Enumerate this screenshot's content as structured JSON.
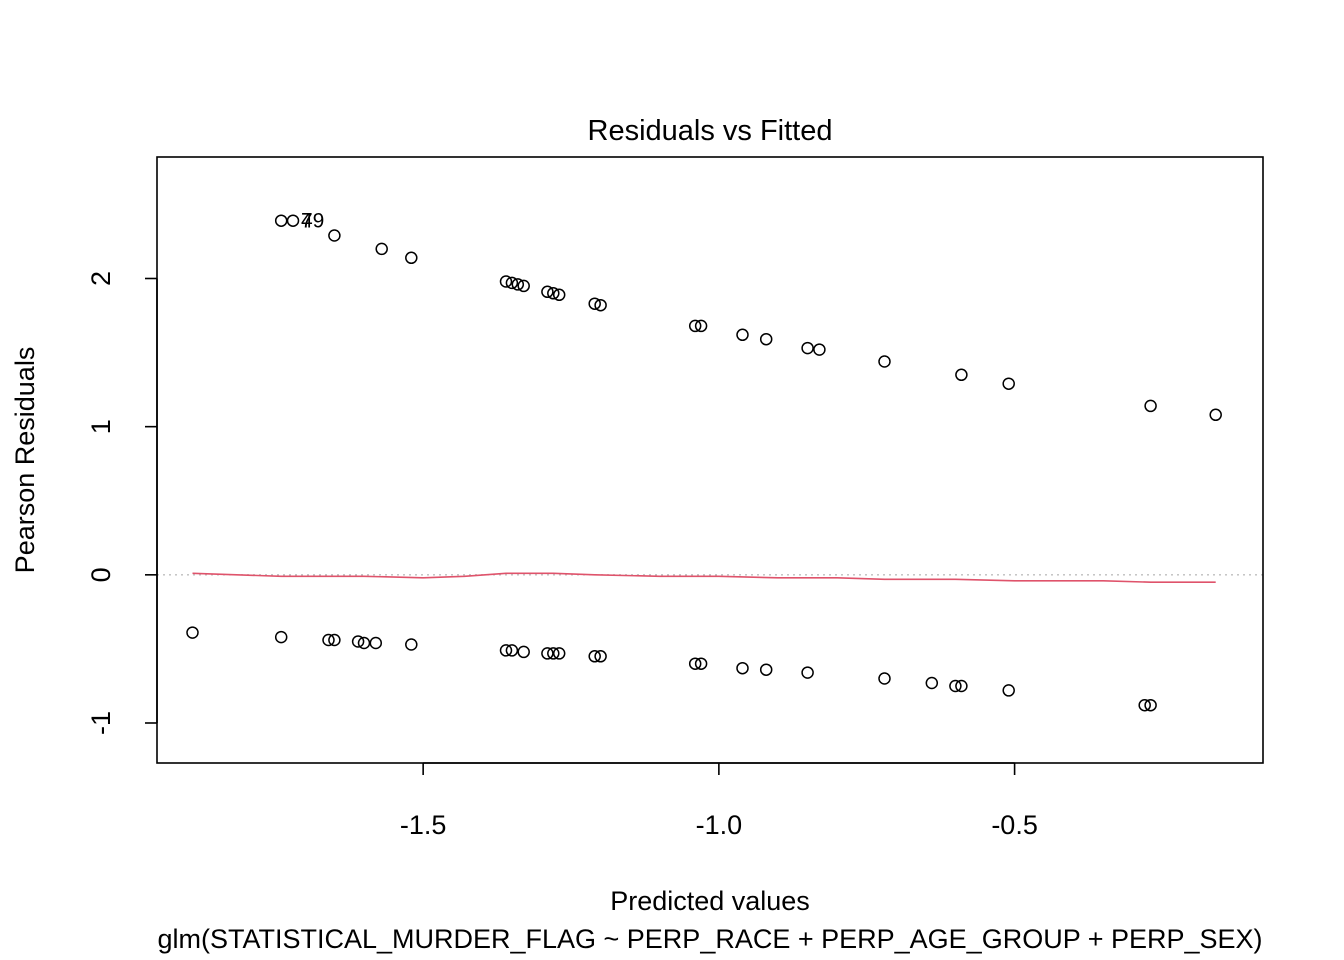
{
  "chart_data": {
    "type": "scatter",
    "title": "Residuals vs Fitted",
    "xlabel": "Predicted values",
    "ylabel": "Pearson Residuals",
    "subtitle": "glm(STATISTICAL_MURDER_FLAG ~ PERP_RACE + PERP_AGE_GROUP + PERP_SEX)",
    "xlim": [
      -1.95,
      -0.08
    ],
    "ylim": [
      -1.27,
      2.82
    ],
    "x_ticks": [
      -1.5,
      -1.0,
      -0.5
    ],
    "x_tick_labels": [
      "-1.5",
      "-1.0",
      "-0.5"
    ],
    "y_ticks": [
      -1,
      0,
      1,
      2
    ],
    "y_tick_labels": [
      "-1",
      "0",
      "1",
      "2"
    ],
    "reference_line": {
      "y": 0,
      "style": "dotted",
      "color": "#BEBEBE"
    },
    "point_labels": [
      {
        "text": "49",
        "x": -1.72,
        "y": 2.39
      },
      {
        "text": "7",
        "x": -1.72,
        "y": 2.39
      }
    ],
    "series": [
      {
        "points": [
          [
            -1.74,
            2.39
          ],
          [
            -1.72,
            2.39
          ],
          [
            -1.65,
            2.29
          ],
          [
            -1.57,
            2.2
          ],
          [
            -1.52,
            2.14
          ],
          [
            -1.36,
            1.98
          ],
          [
            -1.35,
            1.97
          ],
          [
            -1.34,
            1.96
          ],
          [
            -1.33,
            1.95
          ],
          [
            -1.29,
            1.91
          ],
          [
            -1.28,
            1.9
          ],
          [
            -1.27,
            1.89
          ],
          [
            -1.21,
            1.83
          ],
          [
            -1.2,
            1.82
          ],
          [
            -1.04,
            1.68
          ],
          [
            -1.03,
            1.68
          ],
          [
            -0.96,
            1.62
          ],
          [
            -0.92,
            1.59
          ],
          [
            -0.85,
            1.53
          ],
          [
            -0.83,
            1.52
          ],
          [
            -0.72,
            1.44
          ],
          [
            -0.59,
            1.35
          ],
          [
            -0.51,
            1.29
          ],
          [
            -0.27,
            1.14
          ],
          [
            -0.16,
            1.08
          ],
          [
            -1.89,
            -0.39
          ],
          [
            -1.74,
            -0.42
          ],
          [
            -1.66,
            -0.44
          ],
          [
            -1.65,
            -0.44
          ],
          [
            -1.61,
            -0.45
          ],
          [
            -1.6,
            -0.46
          ],
          [
            -1.58,
            -0.46
          ],
          [
            -1.52,
            -0.47
          ],
          [
            -1.36,
            -0.51
          ],
          [
            -1.35,
            -0.51
          ],
          [
            -1.33,
            -0.52
          ],
          [
            -1.29,
            -0.53
          ],
          [
            -1.28,
            -0.53
          ],
          [
            -1.27,
            -0.53
          ],
          [
            -1.21,
            -0.55
          ],
          [
            -1.2,
            -0.55
          ],
          [
            -1.04,
            -0.6
          ],
          [
            -1.03,
            -0.6
          ],
          [
            -0.96,
            -0.63
          ],
          [
            -0.92,
            -0.64
          ],
          [
            -0.85,
            -0.66
          ],
          [
            -0.72,
            -0.7
          ],
          [
            -0.64,
            -0.73
          ],
          [
            -0.6,
            -0.75
          ],
          [
            -0.59,
            -0.75
          ],
          [
            -0.51,
            -0.78
          ],
          [
            -0.28,
            -0.88
          ],
          [
            -0.27,
            -0.88
          ]
        ]
      },
      {
        "type": "line",
        "color": "#DF536B",
        "points": [
          [
            -1.89,
            0.01
          ],
          [
            -1.74,
            -0.01
          ],
          [
            -1.6,
            -0.01
          ],
          [
            -1.5,
            -0.02
          ],
          [
            -1.43,
            -0.01
          ],
          [
            -1.36,
            0.01
          ],
          [
            -1.28,
            0.01
          ],
          [
            -1.21,
            0.0
          ],
          [
            -1.1,
            -0.01
          ],
          [
            -1.0,
            -0.01
          ],
          [
            -0.9,
            -0.02
          ],
          [
            -0.8,
            -0.02
          ],
          [
            -0.72,
            -0.03
          ],
          [
            -0.6,
            -0.03
          ],
          [
            -0.5,
            -0.04
          ],
          [
            -0.35,
            -0.04
          ],
          [
            -0.27,
            -0.05
          ],
          [
            -0.16,
            -0.05
          ]
        ]
      }
    ]
  }
}
